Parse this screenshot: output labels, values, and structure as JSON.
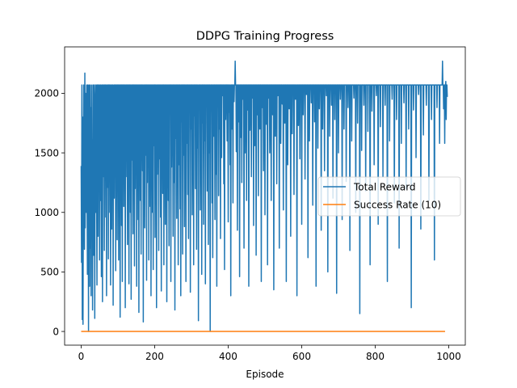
{
  "chart_data": {
    "type": "line",
    "title": "DDPG Training Progress",
    "xlabel": "Episode",
    "ylabel": "",
    "xlim": [
      -45,
      1045
    ],
    "ylim": [
      -115,
      2390
    ],
    "xticks": [
      0,
      200,
      400,
      600,
      800,
      1000
    ],
    "yticks": [
      0,
      500,
      1000,
      1500,
      2000
    ],
    "grid": false,
    "legend_position": "center-right",
    "series": [
      {
        "name": "Total Reward",
        "color": "#1f77b4",
        "x_start": 0,
        "x_step": 1,
        "values": [
          1390,
          580,
          2070,
          100,
          1800,
          60,
          1210,
          2070,
          1720,
          690,
          2170,
          870,
          2000,
          1390,
          1000,
          2070,
          1220,
          480,
          2070,
          1620,
          0,
          2070,
          1200,
          380,
          2070,
          700,
          1880,
          300,
          2070,
          900,
          1610,
          180,
          2070,
          1280,
          640,
          2070,
          1910,
          110,
          1700,
          2070,
          1000,
          2070,
          1240,
          390,
          2070,
          1680,
          800,
          2070,
          1420,
          2070,
          600,
          1950,
          2070,
          1100,
          2070,
          460,
          1780,
          2070,
          250,
          2070,
          1300,
          2070,
          1880,
          680,
          2070,
          1540,
          2070,
          960,
          2070,
          300,
          1930,
          2070,
          1210,
          2070,
          610,
          2070,
          1740,
          2070,
          1000,
          2070,
          390,
          1620,
          2070,
          860,
          2070,
          1500,
          2070,
          220,
          1980,
          2070,
          1120,
          2070,
          1780,
          2070,
          510,
          2070,
          1400,
          2070,
          770,
          2070,
          1950,
          2070,
          600,
          2070,
          1260,
          2070,
          120,
          2070,
          1650,
          2070,
          890,
          2070,
          420,
          2070,
          1900,
          2070,
          1050,
          2070,
          1700,
          2070,
          200,
          2070,
          1300,
          2070,
          2030,
          2070,
          730,
          2070,
          1560,
          2070,
          400,
          2070,
          1860,
          2070,
          1000,
          2070,
          270,
          2070,
          1440,
          2070,
          2070,
          820,
          2070,
          1700,
          2070,
          550,
          2070,
          1200,
          2070,
          2000,
          2070,
          380,
          2070,
          1600,
          2070,
          940,
          2070,
          160,
          2070,
          1780,
          2070,
          1100,
          2070,
          650,
          2070,
          1920,
          2070,
          1350,
          2070,
          80,
          2070,
          1640,
          2070,
          870,
          2070,
          1480,
          2070,
          2070,
          430,
          2070,
          1250,
          2070,
          1820,
          2070,
          600,
          2070,
          1050,
          2070,
          1930,
          2070,
          300,
          2070,
          1700,
          2070,
          1000,
          2070,
          520,
          2070,
          1560,
          2070,
          2070,
          790,
          2070,
          1880,
          2070,
          200,
          2070,
          1320,
          2070,
          1720,
          2070,
          680,
          2070,
          1450,
          2070,
          2070,
          960,
          2070,
          340,
          2070,
          1780,
          2070,
          1160,
          2070,
          2070,
          560,
          2070,
          1600,
          2070,
          900,
          2070,
          2000,
          2070,
          250,
          2070,
          1500,
          2070,
          1100,
          2070,
          720,
          2070,
          1860,
          2070,
          2070,
          420,
          2070,
          1380,
          2070,
          1700,
          2070,
          800,
          2070,
          2070,
          1250,
          2070,
          180,
          2070,
          1620,
          2070,
          2070,
          950,
          2070,
          1890,
          2070,
          560,
          2070,
          1400,
          2070,
          2070,
          1030,
          2070,
          300,
          2070,
          1760,
          2070,
          2070,
          650,
          2070,
          1480,
          2070,
          2070,
          880,
          2070,
          2000,
          2070,
          420,
          2070,
          1580,
          2070,
          2070,
          1150,
          2070,
          780,
          2070,
          1900,
          2070,
          2070,
          330,
          2070,
          1700,
          2070,
          2070,
          980,
          2070,
          1420,
          2070,
          560,
          2070,
          2070,
          1810,
          2070,
          1200,
          2070,
          2070,
          690,
          2070,
          1540,
          2070,
          2070,
          90,
          2070,
          1880,
          2070,
          2070,
          1020,
          2070,
          1330,
          2070,
          480,
          2070,
          2070,
          1750,
          2070,
          900,
          2070,
          2070,
          1600,
          2070,
          400,
          2070,
          2070,
          1960,
          2070,
          1180,
          2070,
          2070,
          730,
          2070,
          1500,
          2070,
          2070,
          0,
          2070,
          1850,
          2070,
          2070,
          1080,
          2070,
          620,
          2070,
          2070,
          1640,
          2070,
          2070,
          940,
          2070,
          1320,
          2070,
          2070,
          380,
          2070,
          1900,
          2070,
          2070,
          1140,
          2070,
          1700,
          2070,
          2070,
          780,
          2070,
          2070,
          1460,
          2070,
          2070,
          1980,
          2070,
          2070,
          1240,
          2070,
          520,
          2070,
          2070,
          1780,
          2070,
          2070,
          2070,
          1600,
          2070,
          2070,
          920,
          2070,
          2070,
          1840,
          2070,
          1400,
          2070,
          300,
          2070,
          2070,
          1700,
          2070,
          2070,
          1080,
          2070,
          2070,
          1930,
          2070,
          2070,
          2270,
          2070,
          2070,
          1510,
          2070,
          2070,
          850,
          2070,
          2070,
          1760,
          2070,
          2070,
          460,
          2070,
          2070,
          1630,
          2070,
          2070,
          1250,
          2070,
          2070,
          1950,
          2070,
          2070,
          700,
          2070,
          2070,
          1500,
          2070,
          2070,
          2070,
          1100,
          2070,
          2070,
          1860,
          2070,
          2070,
          380,
          2070,
          2070,
          1690,
          2070,
          2070,
          2070,
          1300,
          2070,
          2070,
          1960,
          2070,
          2070,
          890,
          2070,
          2070,
          1560,
          2070,
          2070,
          2070,
          640,
          2070,
          2070,
          1820,
          2070,
          2070,
          1140,
          2070,
          2070,
          2070,
          1700,
          2070,
          2070,
          2070,
          420,
          2070,
          2070,
          1880,
          2070,
          2070,
          1350,
          2070,
          2070,
          2070,
          980,
          2070,
          2070,
          1740,
          2070,
          2070,
          2070,
          560,
          2070,
          2070,
          1960,
          2070,
          2070,
          1500,
          2070,
          2070,
          2070,
          1100,
          2070,
          2070,
          2070,
          1820,
          2070,
          2070,
          350,
          2070,
          2070,
          2070,
          1640,
          2070,
          2070,
          2070,
          1240,
          2070,
          2070,
          1980,
          2070,
          2070,
          2070,
          700,
          2070,
          2070,
          2070,
          1580,
          2070,
          2070,
          2070,
          1910,
          2070,
          2070,
          1020,
          2070,
          2070,
          2070,
          1750,
          2070,
          2070,
          2070,
          420,
          2070,
          2070,
          2070,
          1400,
          2070,
          2070,
          2070,
          1870,
          2070,
          2070,
          2070,
          800,
          2070,
          2070,
          2070,
          1660,
          2070,
          2070,
          2070,
          2070,
          1150,
          2070,
          2070,
          2070,
          1950,
          2070,
          2070,
          2070,
          300,
          2070,
          2070,
          2070,
          1730,
          2070,
          2070,
          2070,
          1450,
          2070,
          2070,
          2070,
          2070,
          900,
          2070,
          2070,
          2070,
          1820,
          2070,
          2070,
          2070,
          2070,
          1280,
          2070,
          2070,
          2070,
          1990,
          2070,
          2070,
          2070,
          620,
          2070,
          2070,
          2070,
          1600,
          2070,
          2070,
          2070,
          2070,
          1920,
          2070,
          2070,
          2070,
          1060,
          2070,
          2070,
          2070,
          2070,
          1760,
          2070,
          2070,
          2070,
          380,
          2070,
          2070,
          2070,
          2070,
          1540,
          2070,
          2070,
          2070,
          1870,
          2070,
          2070,
          2070,
          2070,
          850,
          2070,
          2070,
          2070,
          1700,
          2070,
          2070,
          2070,
          2070,
          1350,
          2070,
          2070,
          2070,
          2070,
          1980,
          2070,
          2070,
          2070,
          500,
          2070,
          2070,
          2070,
          2070,
          1640,
          2070,
          2070,
          2070,
          2070,
          1900,
          2070,
          2070,
          2070,
          1120,
          2070,
          2070,
          2070,
          2070,
          1780,
          2070,
          2070,
          2070,
          2070,
          320,
          2070,
          2070,
          2070,
          2070,
          1500,
          2070,
          2070,
          2070,
          2070,
          1950,
          2070,
          2070,
          2070,
          2070,
          940,
          2070,
          2070,
          2070,
          2070,
          1700,
          2070,
          2070,
          2070,
          2070,
          2070,
          1260,
          2070,
          2070,
          2070,
          2070,
          1880,
          2070,
          2070,
          2070,
          2070,
          680,
          2070,
          2070,
          2070,
          2070,
          1600,
          2070,
          2070,
          2070,
          2070,
          2070,
          1960,
          2070,
          2070,
          2070,
          2070,
          1000,
          2070,
          2070,
          2070,
          2070,
          1750,
          2070,
          2070,
          2070,
          2070,
          2070,
          150,
          2070,
          2070,
          2070,
          2070,
          1520,
          2070,
          2070,
          2070,
          2070,
          2070,
          1900,
          2070,
          2070,
          2070,
          2070,
          1180,
          2070,
          2070,
          2070,
          2070,
          2070,
          1680,
          2070,
          2070,
          2070,
          2070,
          2070,
          560,
          2070,
          2070,
          2070,
          2070,
          1850,
          2070,
          2070,
          2070,
          2070,
          2070,
          1400,
          2070,
          2070,
          2070,
          2070,
          2070,
          1980,
          2070,
          2070,
          2070,
          2070,
          900,
          2070,
          2070,
          2070,
          2070,
          2070,
          1720,
          2070,
          2070,
          2070,
          2070,
          2070,
          2070,
          1300,
          2070,
          2070,
          2070,
          2070,
          2070,
          1900,
          2070,
          2070,
          2070,
          2070,
          2070,
          420,
          2070,
          2070,
          2070,
          2070,
          2070,
          1600,
          2070,
          2070,
          2070,
          2070,
          2070,
          2070,
          1950,
          2070,
          2070,
          2070,
          2070,
          2070,
          1080,
          2070,
          2070,
          2070,
          2070,
          2070,
          1780,
          2070,
          2070,
          2070,
          2070,
          2070,
          2070,
          700,
          2070,
          2070,
          2070,
          2070,
          2070,
          1580,
          2070,
          2070,
          2070,
          2070,
          2070,
          2070,
          1920,
          2070,
          2070,
          2070,
          2070,
          2070,
          1200,
          2070,
          2070,
          2070,
          2070,
          2070,
          2070,
          1700,
          2070,
          2070,
          2070,
          2070,
          2070,
          2070,
          200,
          2070,
          2070,
          2070,
          2070,
          2070,
          1860,
          2070,
          2070,
          2070,
          2070,
          2070,
          2070,
          1460,
          2070,
          2070,
          2070,
          2070,
          2070,
          2070,
          1990,
          2070,
          2070,
          2070,
          2070,
          2070,
          860,
          2070,
          2070,
          2070,
          2070,
          2070,
          2070,
          1650,
          2070,
          2070,
          2070,
          2070,
          2070,
          2070,
          2070,
          1900,
          2070,
          2070,
          2070,
          2070,
          2070,
          2070,
          1100,
          2070,
          2070,
          2070,
          2070,
          2070,
          2070,
          1780,
          2070,
          2070,
          2070,
          2070,
          2070,
          2070,
          2070,
          600,
          2070,
          2070,
          2070,
          2070,
          2070,
          2070,
          1880,
          2070,
          2070,
          2070,
          2070,
          2070,
          2070,
          1580,
          2070,
          2070,
          2070,
          2070,
          2070,
          2070,
          2070,
          2270,
          2070,
          2070,
          1870,
          2070,
          2070,
          1580,
          2070,
          2070,
          2100,
          1780,
          2070,
          2070,
          1970
        ]
      },
      {
        "name": "Success Rate (10)",
        "color": "#ff7f0e",
        "x": [
          0,
          990
        ],
        "values": [
          0,
          0
        ]
      }
    ]
  }
}
